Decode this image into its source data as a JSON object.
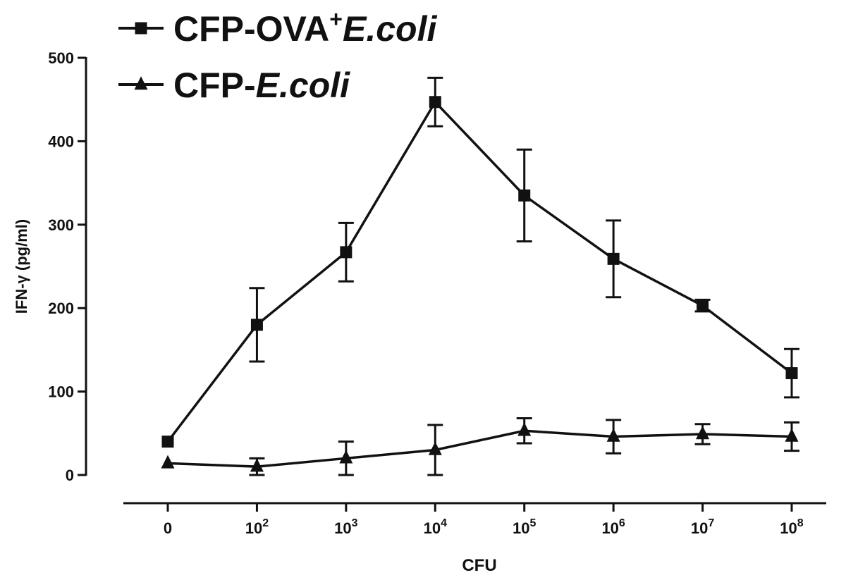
{
  "chart_data": {
    "type": "line",
    "categories": [
      "0",
      "10^2",
      "10^3",
      "10^4",
      "10^5",
      "10^6",
      "10^7",
      "10^8"
    ],
    "x_tick_labels": [
      {
        "base": "0",
        "exp": ""
      },
      {
        "base": "10",
        "exp": "2"
      },
      {
        "base": "10",
        "exp": "3"
      },
      {
        "base": "10",
        "exp": "4"
      },
      {
        "base": "10",
        "exp": "5"
      },
      {
        "base": "10",
        "exp": "6"
      },
      {
        "base": "10",
        "exp": "7"
      },
      {
        "base": "10",
        "exp": "8"
      }
    ],
    "series": [
      {
        "name": "CFP-OVA+E.coli",
        "legend_parts": [
          {
            "text": "CFP-OVA",
            "style": "normal"
          },
          {
            "text": "+",
            "style": "super"
          },
          {
            "text": "E.coli",
            "style": "italic"
          }
        ],
        "marker": "square",
        "values": [
          40,
          180,
          267,
          447,
          335,
          259,
          203,
          122
        ],
        "errors": [
          0,
          44,
          35,
          29,
          55,
          46,
          7,
          29
        ]
      },
      {
        "name": "CFP-E.coli",
        "legend_parts": [
          {
            "text": "CFP-",
            "style": "normal"
          },
          {
            "text": "E.coli",
            "style": "italic"
          }
        ],
        "marker": "triangle",
        "values": [
          14,
          10,
          20,
          30,
          53,
          46,
          49,
          46
        ],
        "errors": [
          0,
          10,
          20,
          30,
          15,
          20,
          12,
          17
        ]
      }
    ],
    "xlabel": "CFU",
    "ylabel": "IFN-γ (pg/ml)",
    "ylim": [
      0,
      500
    ],
    "y_ticks": [
      0,
      100,
      200,
      300,
      400,
      500
    ],
    "grid": false,
    "legend_position": "top-left",
    "colors": {
      "line": "#111111"
    }
  }
}
